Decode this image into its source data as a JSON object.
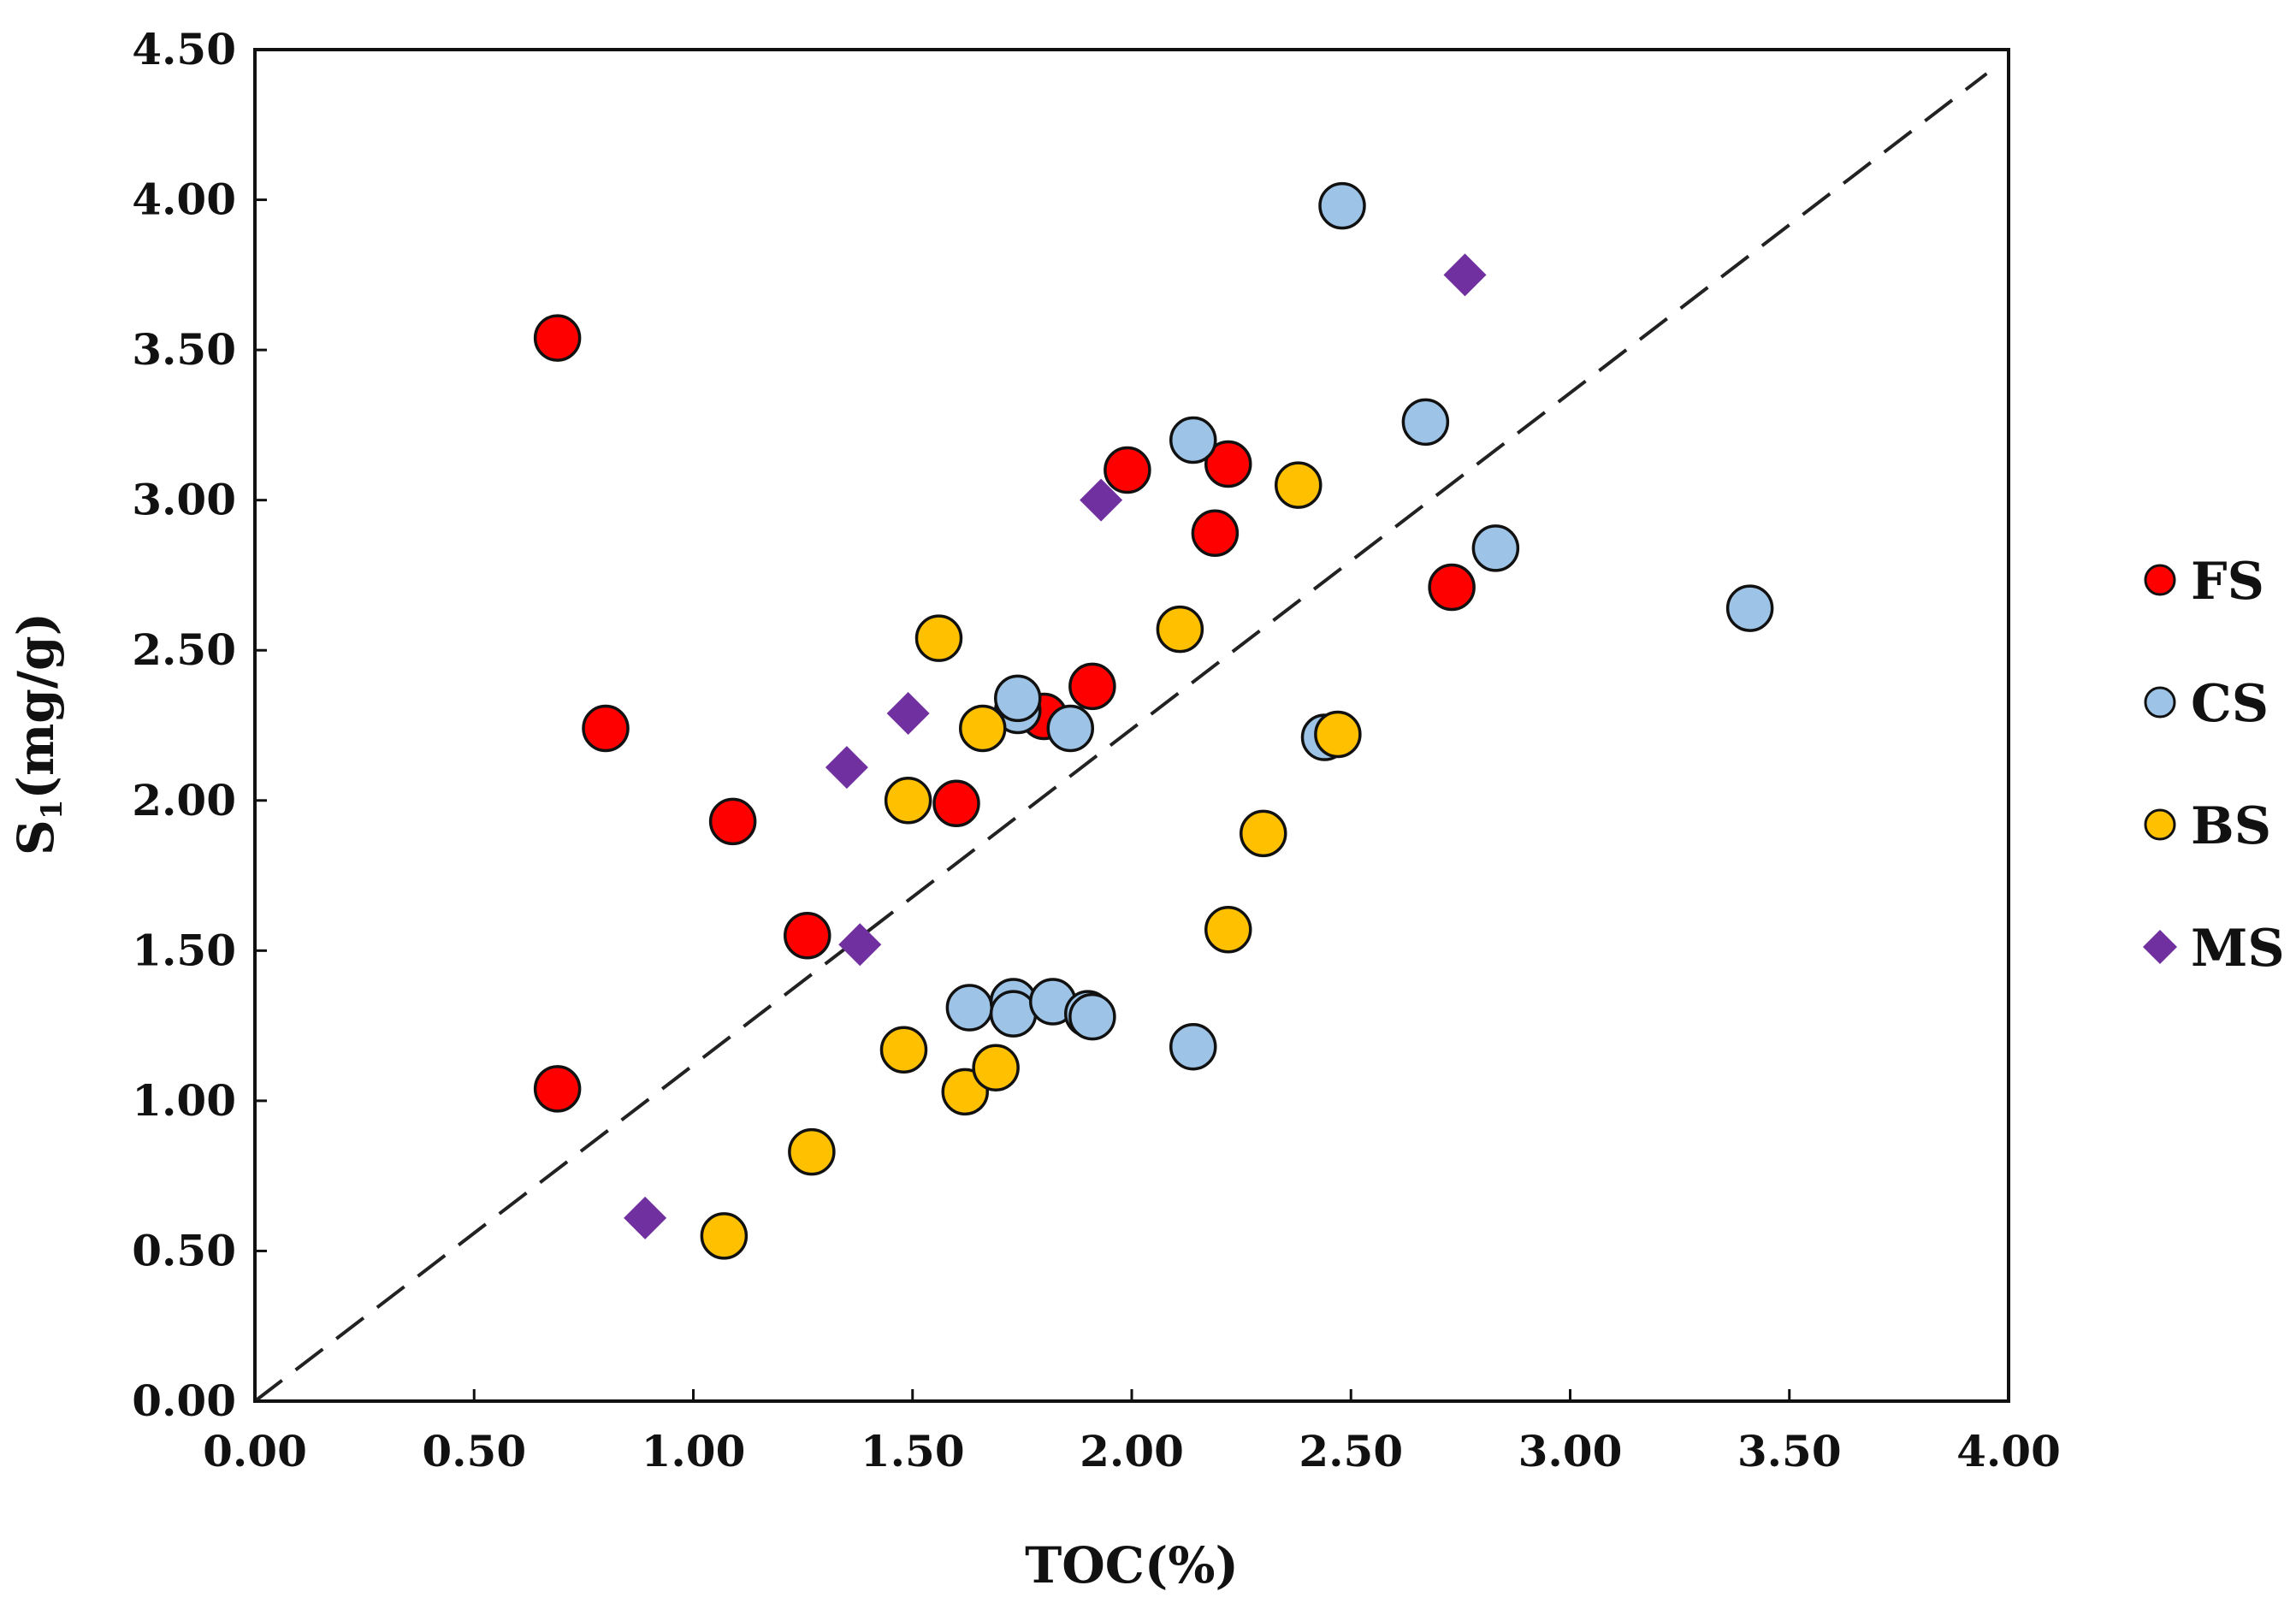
{
  "chart_data": {
    "type": "scatter",
    "title": "",
    "xlabel": "TOC(%)",
    "ylabel_main": "S",
    "ylabel_sub": "1",
    "ylabel_unit": "(mg/g)",
    "xlim": [
      0,
      4
    ],
    "ylim": [
      0,
      4.5
    ],
    "x_ticks": [
      "0.00",
      "0.50",
      "1.00",
      "1.50",
      "2.00",
      "2.50",
      "3.00",
      "3.50",
      "4.00"
    ],
    "y_ticks": [
      "0.00",
      "0.50",
      "1.00",
      "1.50",
      "2.00",
      "2.50",
      "3.00",
      "3.50",
      "4.00",
      "4.50"
    ],
    "grid": false,
    "legend_position": "right",
    "reference_line": {
      "style": "dashed",
      "x": [
        0,
        3.95
      ],
      "y": [
        0,
        4.42
      ]
    },
    "series": [
      {
        "name": "FS",
        "marker": "circle",
        "color": "#ff0000",
        "points": [
          {
            "x": 0.69,
            "y": 3.54
          },
          {
            "x": 0.8,
            "y": 2.24
          },
          {
            "x": 0.69,
            "y": 1.04
          },
          {
            "x": 1.09,
            "y": 1.93
          },
          {
            "x": 1.26,
            "y": 1.55
          },
          {
            "x": 1.6,
            "y": 1.99
          },
          {
            "x": 1.8,
            "y": 2.28
          },
          {
            "x": 1.91,
            "y": 2.38
          },
          {
            "x": 1.99,
            "y": 3.1
          },
          {
            "x": 2.19,
            "y": 2.89
          },
          {
            "x": 2.22,
            "y": 3.12
          },
          {
            "x": 2.73,
            "y": 2.71
          }
        ]
      },
      {
        "name": "CS",
        "marker": "circle",
        "color": "#9dc3e6",
        "points": [
          {
            "x": 1.63,
            "y": 1.31
          },
          {
            "x": 1.73,
            "y": 1.33
          },
          {
            "x": 1.73,
            "y": 1.29
          },
          {
            "x": 1.82,
            "y": 1.33
          },
          {
            "x": 1.9,
            "y": 1.29
          },
          {
            "x": 1.91,
            "y": 1.28
          },
          {
            "x": 2.14,
            "y": 1.18
          },
          {
            "x": 1.74,
            "y": 2.3
          },
          {
            "x": 1.74,
            "y": 2.34
          },
          {
            "x": 1.86,
            "y": 2.24
          },
          {
            "x": 2.14,
            "y": 3.2
          },
          {
            "x": 2.44,
            "y": 2.21
          },
          {
            "x": 2.48,
            "y": 3.98
          },
          {
            "x": 2.67,
            "y": 3.26
          },
          {
            "x": 2.83,
            "y": 2.84
          },
          {
            "x": 3.41,
            "y": 2.64
          }
        ]
      },
      {
        "name": "BS",
        "marker": "circle",
        "color": "#ffc000",
        "points": [
          {
            "x": 1.07,
            "y": 0.55
          },
          {
            "x": 1.27,
            "y": 0.83
          },
          {
            "x": 1.48,
            "y": 1.17
          },
          {
            "x": 1.62,
            "y": 1.03
          },
          {
            "x": 1.69,
            "y": 1.11
          },
          {
            "x": 1.49,
            "y": 2.0
          },
          {
            "x": 1.56,
            "y": 2.54
          },
          {
            "x": 1.66,
            "y": 2.24
          },
          {
            "x": 2.11,
            "y": 2.57
          },
          {
            "x": 2.22,
            "y": 1.57
          },
          {
            "x": 2.3,
            "y": 1.89
          },
          {
            "x": 2.38,
            "y": 3.05
          },
          {
            "x": 2.47,
            "y": 2.22
          }
        ]
      },
      {
        "name": "MS",
        "marker": "diamond",
        "color": "#7030a0",
        "points": [
          {
            "x": 0.89,
            "y": 0.61
          },
          {
            "x": 1.35,
            "y": 2.11
          },
          {
            "x": 1.38,
            "y": 1.52
          },
          {
            "x": 1.49,
            "y": 2.29
          },
          {
            "x": 1.93,
            "y": 3.0
          },
          {
            "x": 2.76,
            "y": 3.75
          }
        ]
      }
    ]
  }
}
